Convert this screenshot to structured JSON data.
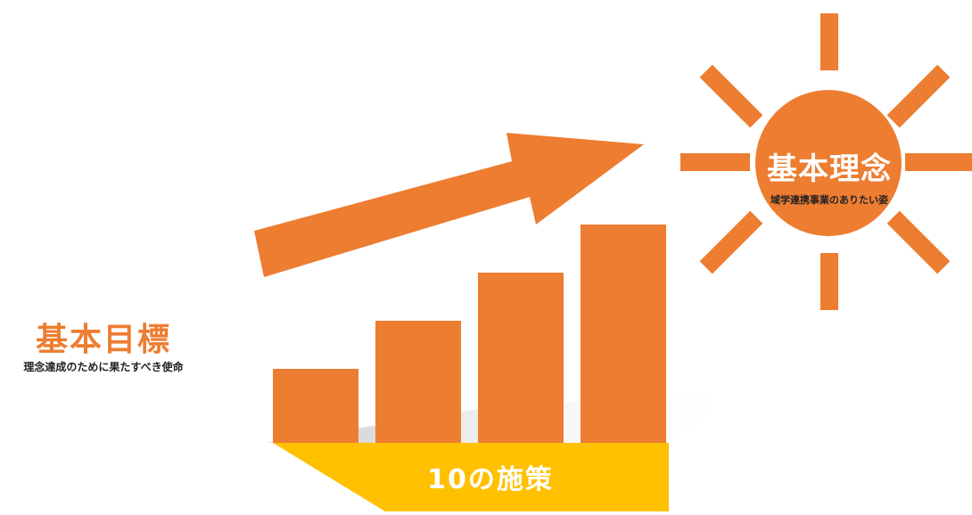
{
  "colors": {
    "accent": "#ED7D31",
    "base": "#FFC000",
    "shadow": "#d8d8d8",
    "text_dark": "#222222",
    "text_light": "#FFFFFF"
  },
  "goal": {
    "title": "基本目標",
    "subtitle": "理念達成のために果たすべき使命"
  },
  "vision": {
    "title": "基本理念",
    "subtitle": "域学連携事業のありたい姿",
    "icon": "sun-icon"
  },
  "measures": {
    "label": "10の施策"
  },
  "growth": {
    "bars": [
      1,
      2,
      3,
      4
    ],
    "icon": "up-right-arrow-icon"
  }
}
